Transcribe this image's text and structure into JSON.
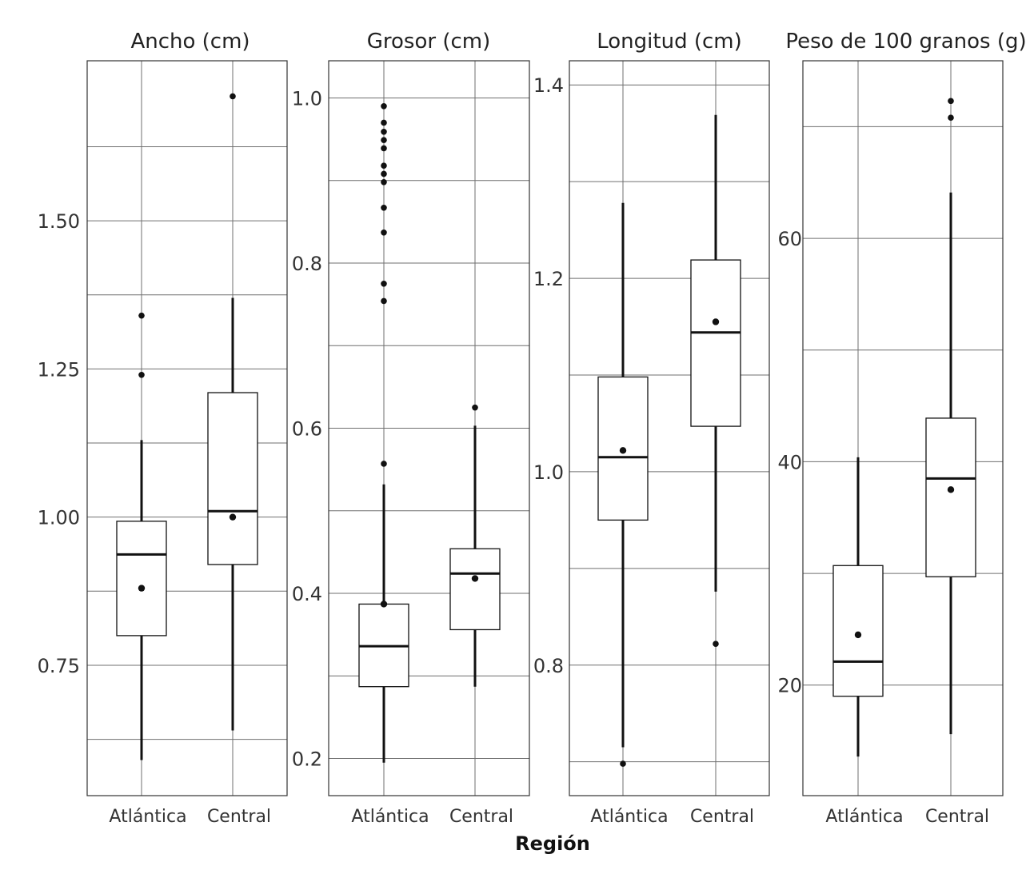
{
  "chart_data": {
    "type": "boxplot",
    "xlabel": "Región",
    "facets": [
      {
        "title": "Ancho (cm)",
        "ylim": [
          0.53,
          1.77
        ],
        "yticks": [
          0.75,
          1.0,
          1.25,
          1.5
        ],
        "ytick_labels": [
          "0.75",
          "1.00",
          "1.25",
          "1.50"
        ],
        "categories": [
          "Atlántica",
          "Central"
        ],
        "boxes": [
          {
            "name": "Atlántica",
            "lower_whisker": 0.59,
            "q1": 0.8,
            "median": 0.937,
            "q3": 0.993,
            "upper_whisker": 1.13,
            "mean": 0.88,
            "outliers": [
              1.24,
              1.34
            ]
          },
          {
            "name": "Central",
            "lower_whisker": 0.64,
            "q1": 0.92,
            "median": 1.01,
            "q3": 1.21,
            "upper_whisker": 1.37,
            "mean": 1.0,
            "outliers": [
              1.71
            ]
          }
        ]
      },
      {
        "title": "Grosor (cm)",
        "ylim": [
          0.155,
          1.045
        ],
        "yticks": [
          0.2,
          0.4,
          0.6,
          0.8,
          1.0
        ],
        "ytick_labels": [
          "0.2",
          "0.4",
          "0.6",
          "0.8",
          "1.0"
        ],
        "categories": [
          "Atlántica",
          "Central"
        ],
        "boxes": [
          {
            "name": "Atlántica",
            "lower_whisker": 0.195,
            "q1": 0.287,
            "median": 0.336,
            "q3": 0.387,
            "upper_whisker": 0.532,
            "mean": 0.387,
            "outliers": [
              0.557,
              0.754,
              0.775,
              0.837,
              0.867,
              0.898,
              0.908,
              0.918,
              0.939,
              0.949,
              0.959,
              0.97,
              0.99
            ]
          },
          {
            "name": "Central",
            "lower_whisker": 0.287,
            "q1": 0.356,
            "median": 0.424,
            "q3": 0.454,
            "upper_whisker": 0.603,
            "mean": 0.418,
            "outliers": [
              0.625
            ]
          }
        ]
      },
      {
        "title": "Longitud (cm)",
        "ylim": [
          0.665,
          1.425
        ],
        "yticks": [
          0.8,
          1.0,
          1.2,
          1.4
        ],
        "ytick_labels": [
          "0.8",
          "1.0",
          "1.2",
          "1.4"
        ],
        "categories": [
          "Atlántica",
          "Central"
        ],
        "boxes": [
          {
            "name": "Atlántica",
            "lower_whisker": 0.715,
            "q1": 0.95,
            "median": 1.015,
            "q3": 1.098,
            "upper_whisker": 1.278,
            "mean": 1.022,
            "outliers": [
              0.698
            ]
          },
          {
            "name": "Central",
            "lower_whisker": 0.876,
            "q1": 1.047,
            "median": 1.144,
            "q3": 1.219,
            "upper_whisker": 1.369,
            "mean": 1.155,
            "outliers": [
              0.822
            ]
          }
        ]
      },
      {
        "title": "Peso de 100 granos (g)",
        "ylim": [
          10.1,
          75.9
        ],
        "yticks": [
          20,
          40,
          60
        ],
        "ytick_labels": [
          "20",
          "40",
          "60"
        ],
        "categories": [
          "Atlántica",
          "Central"
        ],
        "boxes": [
          {
            "name": "Atlántica",
            "lower_whisker": 13.6,
            "q1": 19.0,
            "median": 22.1,
            "q3": 30.7,
            "upper_whisker": 40.4,
            "mean": 24.5,
            "outliers": []
          },
          {
            "name": "Central",
            "lower_whisker": 15.6,
            "q1": 29.7,
            "median": 38.5,
            "q3": 43.9,
            "upper_whisker": 64.1,
            "mean": 37.5,
            "outliers": [
              70.8,
              72.3
            ]
          }
        ]
      }
    ]
  }
}
